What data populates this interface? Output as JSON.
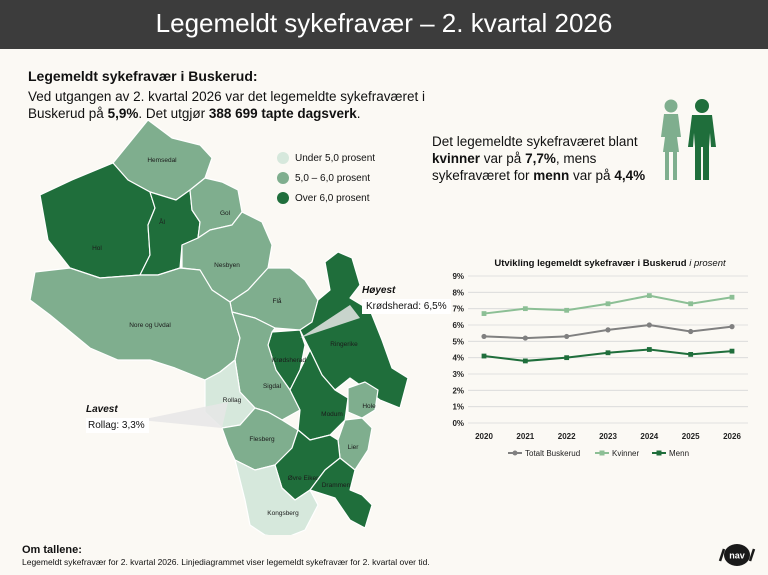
{
  "header": {
    "title": "Legemeldt sykefravær – 2. kvartal 2026"
  },
  "intro": {
    "title": "Legemeldt sykefravær i Buskerud:",
    "line_a": "Ved utgangen av 2. kvartal 2026 var det legemeldte sykefraværet i Buskerud på ",
    "value_a": "5,9%",
    "line_b": ". Det utgjør ",
    "value_b": "388 699 tapte dagsverk",
    "line_c": "."
  },
  "gender": {
    "line_a": "Det legemeldte sykefraværet blant ",
    "women_label": "kvinner",
    "line_b": " var på ",
    "women_value": "7,7%",
    "line_c": ", mens sykefraværet for ",
    "men_label": "menn",
    "line_d": " var på ",
    "men_value": "4,4%"
  },
  "map_legend": {
    "items": [
      {
        "label": "Under 5,0 prosent",
        "color": "#d6e8dc"
      },
      {
        "label": "5,0 – 6,0 prosent",
        "color": "#7fae8e"
      },
      {
        "label": "Over 6,0 prosent",
        "color": "#1f6e3b"
      }
    ]
  },
  "municipalities": [
    {
      "name": "Hemsedal",
      "class": "mid"
    },
    {
      "name": "Hol",
      "class": "high"
    },
    {
      "name": "Ål",
      "class": "high"
    },
    {
      "name": "Gol",
      "class": "mid"
    },
    {
      "name": "Nesbyen",
      "class": "mid"
    },
    {
      "name": "Flå",
      "class": "mid"
    },
    {
      "name": "Nore og Uvdal",
      "class": "mid"
    },
    {
      "name": "Krødsherad",
      "class": "high"
    },
    {
      "name": "Ringerike",
      "class": "high"
    },
    {
      "name": "Sigdal",
      "class": "mid"
    },
    {
      "name": "Rollag",
      "class": "low"
    },
    {
      "name": "Modum",
      "class": "high"
    },
    {
      "name": "Hole",
      "class": "mid"
    },
    {
      "name": "Flesberg",
      "class": "mid"
    },
    {
      "name": "Lier",
      "class": "mid"
    },
    {
      "name": "Øvre Eiker",
      "class": "high"
    },
    {
      "name": "Drammen",
      "class": "high"
    },
    {
      "name": "Kongsberg",
      "class": "low"
    }
  ],
  "callouts": {
    "high_title": "Høyest",
    "high_text": "Krødsherad: 6,5%",
    "low_title": "Lavest",
    "low_text": "Rollag: 3,3%"
  },
  "chart_title": {
    "main": "Utvikling legemeldt sykefravær i Buskerud",
    "unit": "i prosent"
  },
  "chart_data": {
    "type": "line",
    "x": [
      "2020",
      "2021",
      "2022",
      "2023",
      "2024",
      "2025",
      "2026"
    ],
    "yticks": [
      "0%",
      "1%",
      "2%",
      "3%",
      "4%",
      "5%",
      "6%",
      "7%",
      "8%",
      "9%"
    ],
    "ylim": [
      0,
      9
    ],
    "grid": true,
    "legend_position": "bottom",
    "series": [
      {
        "name": "Totalt Buskerud",
        "color": "#808080",
        "values": [
          5.3,
          5.2,
          5.3,
          5.7,
          6.0,
          5.6,
          5.9
        ]
      },
      {
        "name": "Kvinner",
        "color": "#8cbf95",
        "values": [
          6.7,
          7.0,
          6.9,
          7.3,
          7.8,
          7.3,
          7.7
        ]
      },
      {
        "name": "Menn",
        "color": "#1f6e3b",
        "values": [
          4.1,
          3.8,
          4.0,
          4.3,
          4.5,
          4.2,
          4.4
        ]
      }
    ]
  },
  "footer": {
    "title": "Om tallene",
    "text": "Legemeldt sykefravær for 2. kvartal 2026. Linjediagrammet viser legemeldt sykefravær for 2. kvartal over tid."
  },
  "logo": {
    "text": "nav"
  }
}
